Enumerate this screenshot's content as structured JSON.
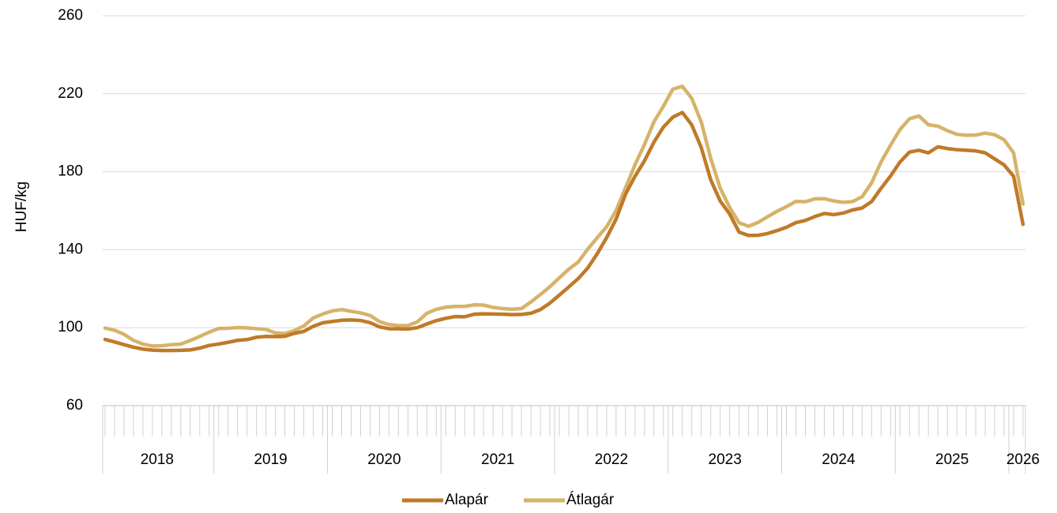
{
  "chart_data": {
    "type": "line",
    "ylabel": "HUF/kg",
    "ylim": [
      60,
      260
    ],
    "yticks": [
      "60",
      "100",
      "140",
      "180",
      "220",
      "260"
    ],
    "year_labels": [
      "2018",
      "2019",
      "2020",
      "2021",
      "2022",
      "2023",
      "2024",
      "2025",
      "2026"
    ],
    "x_start": "2018-01",
    "x_end": "2026-01",
    "grid": true,
    "legend_position": "bottom",
    "colors": {
      "Alapár": "#c07a28",
      "Átlagár": "#d6b36a"
    },
    "series": [
      {
        "name": "Alapár",
        "values": [
          94.0,
          92.7,
          91.3,
          90.0,
          89.0,
          88.5,
          88.3,
          88.3,
          88.4,
          88.6,
          89.5,
          90.9,
          91.6,
          92.5,
          93.5,
          93.9,
          95.1,
          95.5,
          95.4,
          95.6,
          97.1,
          98.1,
          100.7,
          102.5,
          103.2,
          103.8,
          104.0,
          103.7,
          102.6,
          100.4,
          99.5,
          99.4,
          99.3,
          100.0,
          101.9,
          103.6,
          104.8,
          105.7,
          105.6,
          106.9,
          107.1,
          107.0,
          106.9,
          106.7,
          106.8,
          107.4,
          109.3,
          112.6,
          116.7,
          120.9,
          125.2,
          130.6,
          137.9,
          146.2,
          155.7,
          168.5,
          177.7,
          185.6,
          195.2,
          202.9,
          208.0,
          210.4,
          204.0,
          192.4,
          175.8,
          165.0,
          158.3,
          149.0,
          147.3,
          147.4,
          148.3,
          149.8,
          151.5,
          153.9,
          155.0,
          157.0,
          158.6,
          158.0,
          158.8,
          160.4,
          161.4,
          164.7,
          171.5,
          177.8,
          185.0,
          190.1,
          191.0,
          189.7,
          192.8,
          191.9,
          191.3,
          191.0,
          190.7,
          189.7,
          186.6,
          183.5,
          177.7,
          153.0
        ]
      },
      {
        "name": "Átlagár",
        "values": [
          99.8,
          98.7,
          96.6,
          93.5,
          91.6,
          90.6,
          90.7,
          91.3,
          91.6,
          93.4,
          95.5,
          97.7,
          99.6,
          99.7,
          100.1,
          99.9,
          99.5,
          99.1,
          97.3,
          97.0,
          98.5,
          100.9,
          105.0,
          107.0,
          108.6,
          109.3,
          108.4,
          107.6,
          106.3,
          103.1,
          101.6,
          101.1,
          101.1,
          103.0,
          107.4,
          109.4,
          110.5,
          110.9,
          110.9,
          111.7,
          111.6,
          110.4,
          109.8,
          109.5,
          109.8,
          113.2,
          117.0,
          121.0,
          125.6,
          130.0,
          133.7,
          140.3,
          146.1,
          151.8,
          160.1,
          171.8,
          183.6,
          194.0,
          205.6,
          213.6,
          222.4,
          223.8,
          217.6,
          205.5,
          186.8,
          171.6,
          161.7,
          153.8,
          152.0,
          154.0,
          156.9,
          159.7,
          162.1,
          164.8,
          164.6,
          166.1,
          166.2,
          165.0,
          164.3,
          164.7,
          167.2,
          174.3,
          185.0,
          193.6,
          201.6,
          207.2,
          208.6,
          204.1,
          203.4,
          201.1,
          199.2,
          198.7,
          198.8,
          199.8,
          199.0,
          196.4,
          189.7,
          163.5
        ]
      }
    ]
  }
}
